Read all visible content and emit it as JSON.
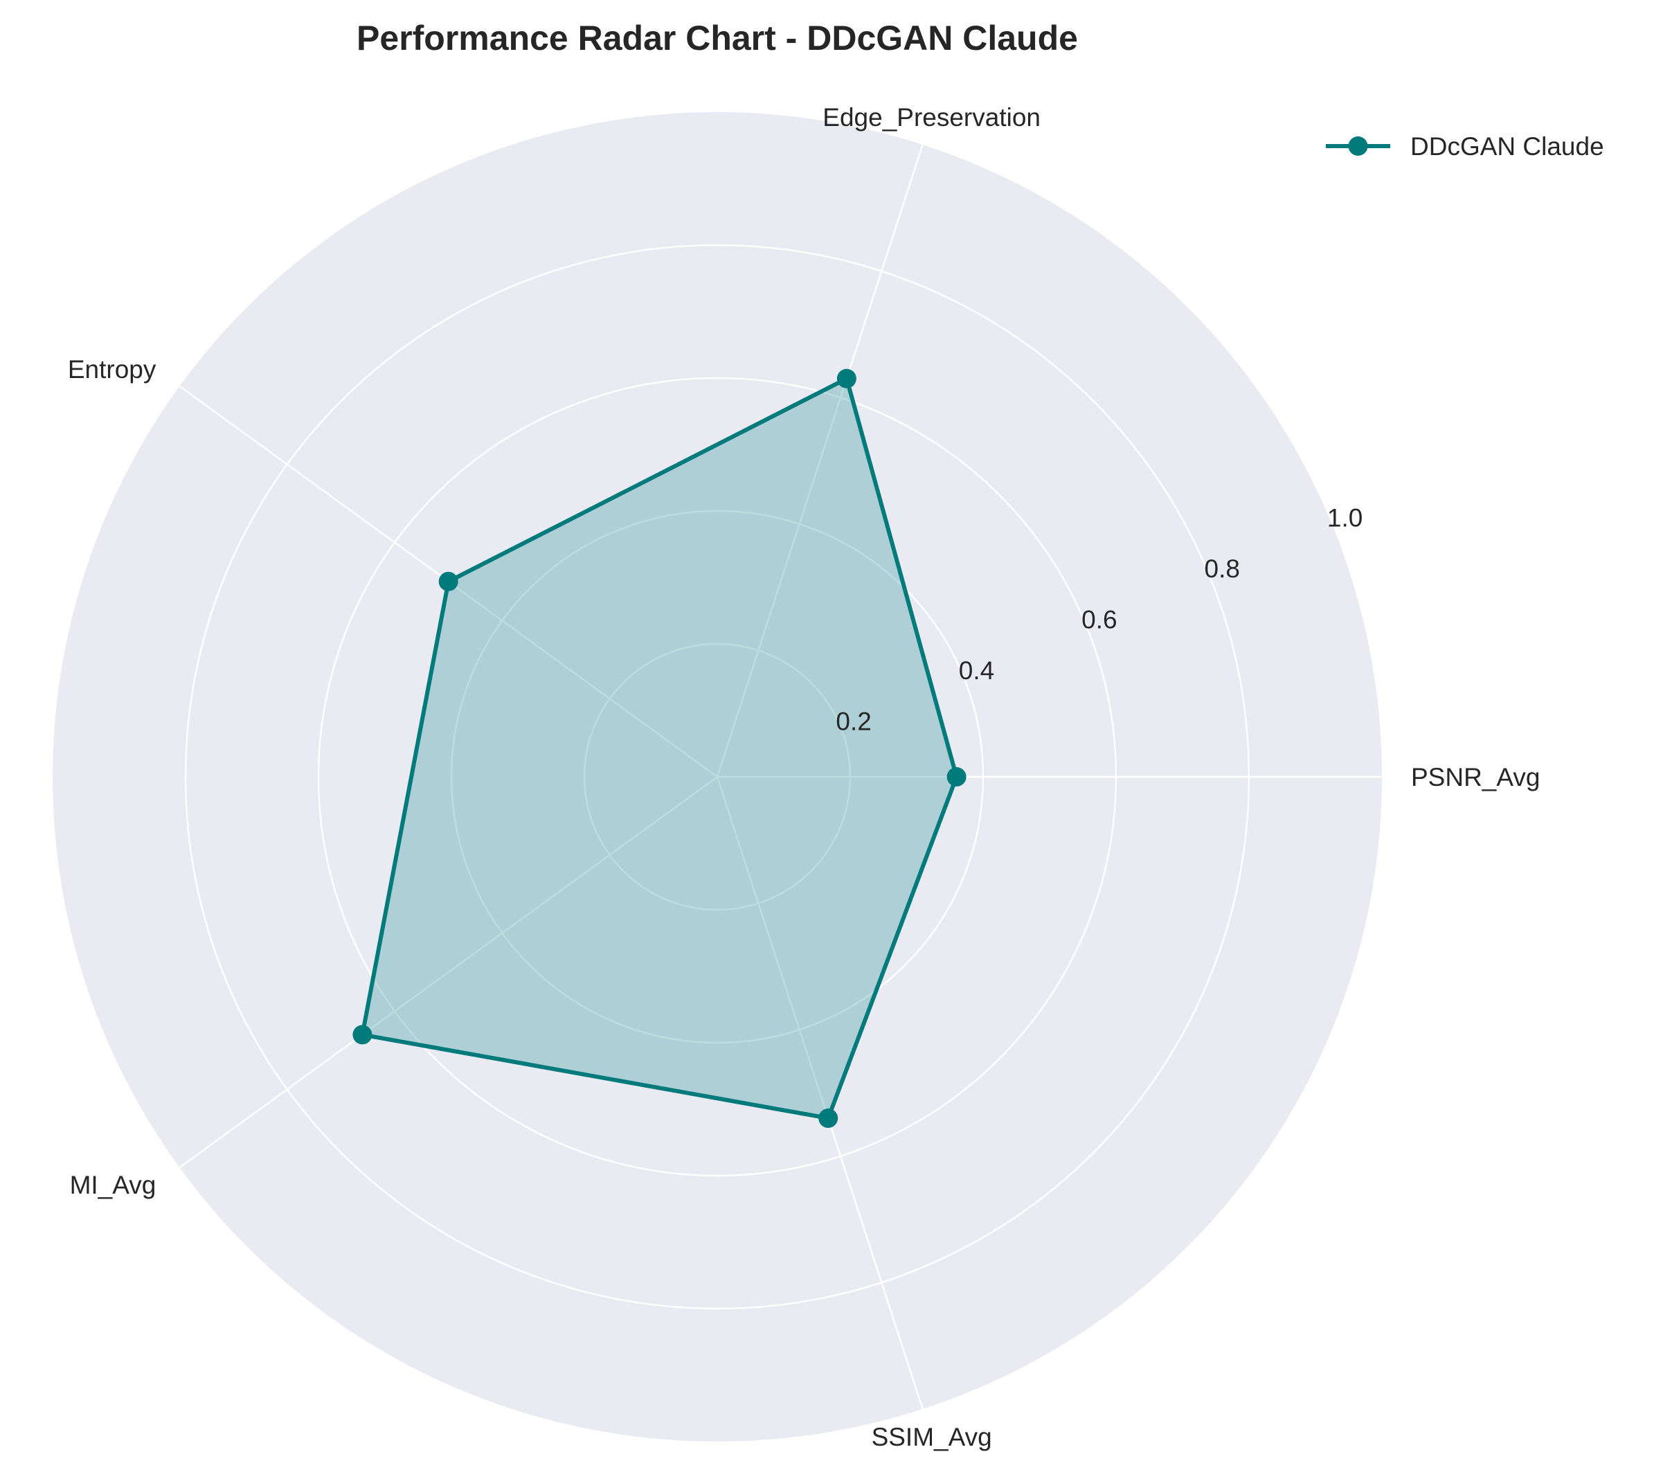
{
  "chart_data": {
    "type": "radar",
    "title": "Performance Radar Chart - DDcGAN Claude",
    "categories": [
      "SSIM_Avg",
      "PSNR_Avg",
      "Edge_Preservation",
      "Entropy",
      "MI_Avg"
    ],
    "series": [
      {
        "name": "DDcGAN Claude",
        "values": [
          0.54,
          0.36,
          0.63,
          0.5,
          0.66
        ]
      }
    ],
    "rlim": [
      0,
      1.0
    ],
    "r_ticks": [
      0.2,
      0.4,
      0.6,
      0.8,
      1.0
    ],
    "r_tick_labels": [
      "0.2",
      "0.4",
      "0.6",
      "0.8",
      "1.0"
    ],
    "legend_position": "top-right",
    "grid": true,
    "colors": {
      "series": "#007a7a",
      "fill": "#4fa3a8",
      "background": "#eaeaf2",
      "grid": "#ffffff"
    }
  }
}
